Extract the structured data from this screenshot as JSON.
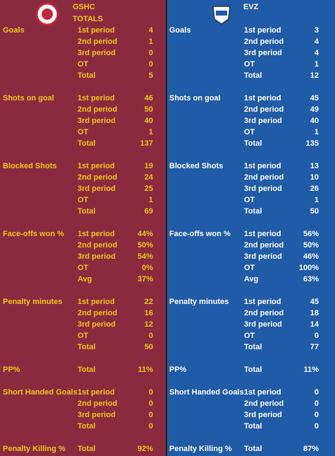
{
  "teams": [
    {
      "name": "GSHC",
      "subtitle": "TOTALS",
      "sections": [
        {
          "label": "Goals",
          "rows": [
            [
              "1st period",
              4
            ],
            [
              "2nd period",
              1
            ],
            [
              "3rd period",
              0
            ],
            [
              "OT",
              0
            ],
            [
              "Total",
              5
            ]
          ]
        },
        {
          "label": "Shots on goal",
          "rows": [
            [
              "1st period",
              46
            ],
            [
              "2nd period",
              50
            ],
            [
              "3rd period",
              40
            ],
            [
              "OT",
              1
            ],
            [
              "Total",
              137
            ]
          ]
        },
        {
          "label": "Blocked Shots",
          "rows": [
            [
              "1st period",
              19
            ],
            [
              "2nd period",
              24
            ],
            [
              "3rd period",
              25
            ],
            [
              "OT",
              1
            ],
            [
              "Total",
              69
            ]
          ]
        },
        {
          "label": "Face-offs won %",
          "rows": [
            [
              "1st period",
              "44%"
            ],
            [
              "2nd period",
              "50%"
            ],
            [
              "3rd period",
              "54%"
            ],
            [
              "OT",
              "0%"
            ],
            [
              "Avg",
              "37%"
            ]
          ]
        },
        {
          "label": "Penalty minutes",
          "rows": [
            [
              "1st period",
              22
            ],
            [
              "2nd period",
              16
            ],
            [
              "3rd period",
              12
            ],
            [
              "OT",
              0
            ],
            [
              "Total",
              50
            ]
          ]
        },
        {
          "label": "PP%",
          "rows": [
            [
              "Total",
              "11%"
            ]
          ]
        },
        {
          "label": "Short Handed Goals",
          "rows": [
            [
              "1st period",
              0
            ],
            [
              "2nd period",
              0
            ],
            [
              "3rd period",
              0
            ],
            [
              "Total",
              0
            ]
          ]
        },
        {
          "label": "Penalty Killing %",
          "rows": [
            [
              "Total",
              "92%"
            ]
          ]
        }
      ]
    },
    {
      "name": "EVZ",
      "sections": [
        {
          "label": "Goals",
          "rows": [
            [
              "1st period",
              3
            ],
            [
              "2nd period",
              4
            ],
            [
              "3rd period",
              4
            ],
            [
              "OT",
              1
            ],
            [
              "Total",
              12
            ]
          ]
        },
        {
          "label": "Shots on goal",
          "rows": [
            [
              "1st period",
              45
            ],
            [
              "2nd period",
              49
            ],
            [
              "3rd period",
              40
            ],
            [
              "OT",
              1
            ],
            [
              "Total",
              135
            ]
          ]
        },
        {
          "label": "Blocked Shots",
          "rows": [
            [
              "1st period",
              13
            ],
            [
              "2nd period",
              10
            ],
            [
              "3rd period",
              26
            ],
            [
              "OT",
              1
            ],
            [
              "Total",
              50
            ]
          ]
        },
        {
          "label": "Face-offs won %",
          "rows": [
            [
              "1st period",
              "56%"
            ],
            [
              "2nd period",
              "50%"
            ],
            [
              "3rd period",
              "46%"
            ],
            [
              "OT",
              "100%"
            ],
            [
              "Avg",
              "63%"
            ]
          ]
        },
        {
          "label": "Penalty minutes",
          "rows": [
            [
              "1st period",
              45
            ],
            [
              "2nd period",
              18
            ],
            [
              "3rd period",
              14
            ],
            [
              "OT",
              0
            ],
            [
              "Total",
              77
            ]
          ]
        },
        {
          "label": "PP%",
          "rows": [
            [
              "Total",
              "11%"
            ]
          ]
        },
        {
          "label": "Short Handed Goals",
          "rows": [
            [
              "1st period",
              0
            ],
            [
              "2nd period",
              0
            ],
            [
              "3rd period",
              0
            ],
            [
              "Total",
              0
            ]
          ]
        },
        {
          "label": "Penalty Killing %",
          "rows": [
            [
              "Total",
              "87%"
            ]
          ]
        }
      ]
    }
  ]
}
